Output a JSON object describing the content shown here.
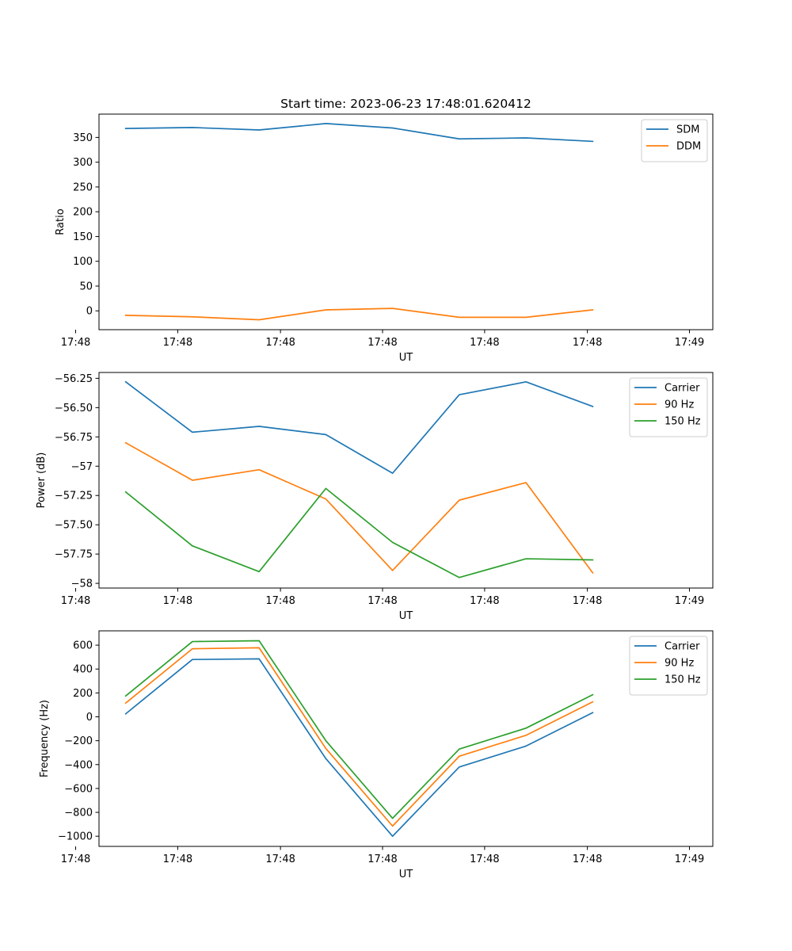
{
  "chart_data": [
    {
      "type": "line",
      "title": "Start time: 2023-06-23 17:48:01.620412",
      "xlabel": "UT",
      "ylabel": "Ratio",
      "ylim": [
        -38,
        397
      ],
      "xlim": [
        -0.4,
        8.8
      ],
      "x": [
        0,
        1,
        2,
        3,
        4,
        5,
        6,
        7
      ],
      "x_ticks": [
        {
          "x": -0.75,
          "label": "17:48"
        },
        {
          "x": 0.78,
          "label": "17:48"
        },
        {
          "x": 2.32,
          "label": "17:48"
        },
        {
          "x": 3.85,
          "label": "17:48"
        },
        {
          "x": 5.38,
          "label": "17:48"
        },
        {
          "x": 6.92,
          "label": "17:48"
        },
        {
          "x": 8.45,
          "label": "17:49"
        }
      ],
      "y_ticks": [
        0,
        50,
        100,
        150,
        200,
        250,
        300,
        350
      ],
      "legend_position": "top-right",
      "series": [
        {
          "name": "SDM",
          "color": "#1f77b4",
          "values": [
            368,
            370,
            365,
            378,
            369,
            347,
            349,
            342
          ]
        },
        {
          "name": "DDM",
          "color": "#ff7f0e",
          "values": [
            -9,
            -12,
            -18,
            2,
            5,
            -13,
            -13,
            2
          ]
        }
      ]
    },
    {
      "type": "line",
      "title": "",
      "xlabel": "UT",
      "ylabel": "Power (dB)",
      "ylim": [
        -58.04,
        -56.2
      ],
      "xlim": [
        -0.4,
        8.8
      ],
      "x": [
        0,
        1,
        2,
        3,
        4,
        5,
        6,
        7
      ],
      "x_ticks": [
        {
          "x": -0.75,
          "label": "17:48"
        },
        {
          "x": 0.78,
          "label": "17:48"
        },
        {
          "x": 2.32,
          "label": "17:48"
        },
        {
          "x": 3.85,
          "label": "17:48"
        },
        {
          "x": 5.38,
          "label": "17:48"
        },
        {
          "x": 6.92,
          "label": "17:48"
        },
        {
          "x": 8.45,
          "label": "17:49"
        }
      ],
      "y_ticks": [
        -58.0,
        -57.75,
        -57.5,
        -57.25,
        -57.0,
        -56.75,
        -56.5,
        -56.25
      ],
      "legend_position": "top-right",
      "series": [
        {
          "name": "Carrier",
          "color": "#1f77b4",
          "values": [
            -56.28,
            -56.71,
            -56.66,
            -56.73,
            -57.06,
            -56.39,
            -56.28,
            -56.49
          ]
        },
        {
          "name": "90 Hz",
          "color": "#ff7f0e",
          "values": [
            -56.8,
            -57.12,
            -57.03,
            -57.28,
            -57.89,
            -57.29,
            -57.14,
            -57.91
          ]
        },
        {
          "name": "150 Hz",
          "color": "#2ca02c",
          "values": [
            -57.22,
            -57.68,
            -57.9,
            -57.19,
            -57.65,
            -57.95,
            -57.79,
            -57.8
          ]
        }
      ]
    },
    {
      "type": "line",
      "title": "",
      "xlabel": "UT",
      "ylabel": "Frequency (Hz)",
      "ylim": [
        -1085,
        720
      ],
      "xlim": [
        -0.4,
        8.8
      ],
      "x": [
        0,
        1,
        2,
        3,
        4,
        5,
        6,
        7
      ],
      "x_ticks": [
        {
          "x": -0.75,
          "label": "17:48"
        },
        {
          "x": 0.78,
          "label": "17:48"
        },
        {
          "x": 2.32,
          "label": "17:48"
        },
        {
          "x": 3.85,
          "label": "17:48"
        },
        {
          "x": 5.38,
          "label": "17:48"
        },
        {
          "x": 6.92,
          "label": "17:48"
        },
        {
          "x": 8.45,
          "label": "17:49"
        }
      ],
      "y_ticks": [
        -1000,
        -800,
        -600,
        -400,
        -200,
        0,
        200,
        400,
        600
      ],
      "legend_position": "top-right",
      "series": [
        {
          "name": "Carrier",
          "color": "#1f77b4",
          "values": [
            25,
            480,
            485,
            -350,
            -1000,
            -420,
            -245,
            35
          ]
        },
        {
          "name": "90 Hz",
          "color": "#ff7f0e",
          "values": [
            115,
            570,
            578,
            -265,
            -915,
            -330,
            -155,
            125
          ]
        },
        {
          "name": "150 Hz",
          "color": "#2ca02c",
          "values": [
            175,
            630,
            637,
            -200,
            -850,
            -270,
            -95,
            185
          ]
        }
      ]
    }
  ]
}
